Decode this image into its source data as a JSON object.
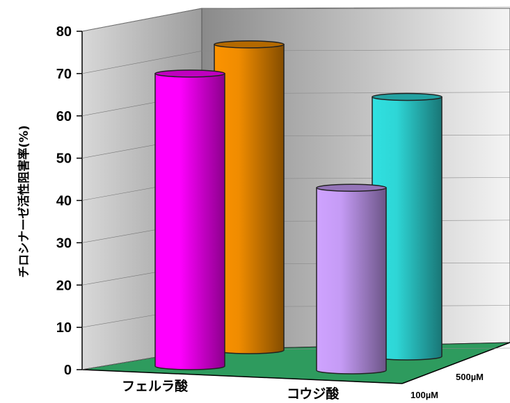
{
  "chart_data": {
    "type": "bar",
    "ylabel": "チロシナーゼ活性阻害率(%)",
    "ylim": [
      0,
      80
    ],
    "yticks": [
      "0",
      "10",
      "20",
      "30",
      "40",
      "50",
      "60",
      "70",
      "80"
    ],
    "categories": [
      "フェルラ酸",
      "コウジ酸"
    ],
    "series": [
      {
        "name": "100µM",
        "values": [
          70,
          43
        ],
        "colors": [
          "#ff00ff",
          "#c59bf5"
        ]
      },
      {
        "name": "500µM",
        "values": [
          72,
          60
        ],
        "colors": [
          "#f08c00",
          "#2ed6d6"
        ]
      }
    ],
    "colors": {
      "floor": "#2e9b5e",
      "back_wall": "#c9c9c9",
      "side_wall": "#b5b5b5"
    }
  }
}
